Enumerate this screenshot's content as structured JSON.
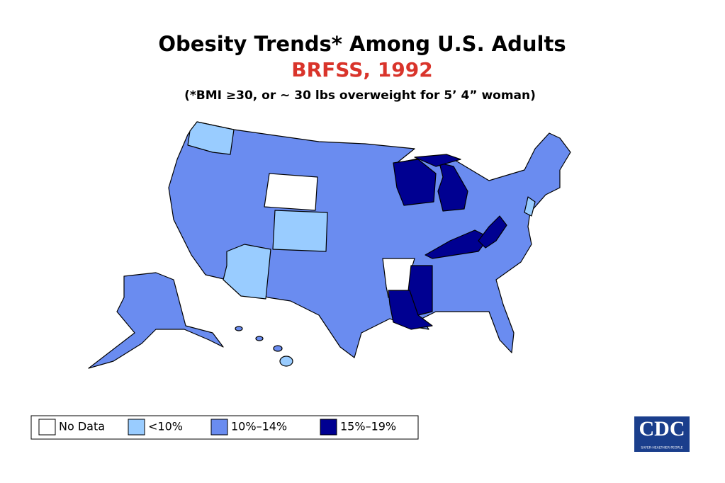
{
  "title": "Obesity Trends* Among U.S. Adults",
  "subtitle": "BRFSS, 1992",
  "note": "(*BMI ≥30, or ~ 30 lbs overweight for 5’ 4” woman)",
  "legend": [
    {
      "name": "No Data",
      "color": "#ffffff"
    },
    {
      "name": "<10%",
      "color": "#99ccff"
    },
    {
      "name": "10%–14%",
      "color": "#6a8cf0"
    },
    {
      "name": "15%–19%",
      "color": "#000091"
    }
  ],
  "logo": {
    "text": "CDC",
    "tagline": "SAFER·HEALTHIER·PEOPLE"
  }
}
